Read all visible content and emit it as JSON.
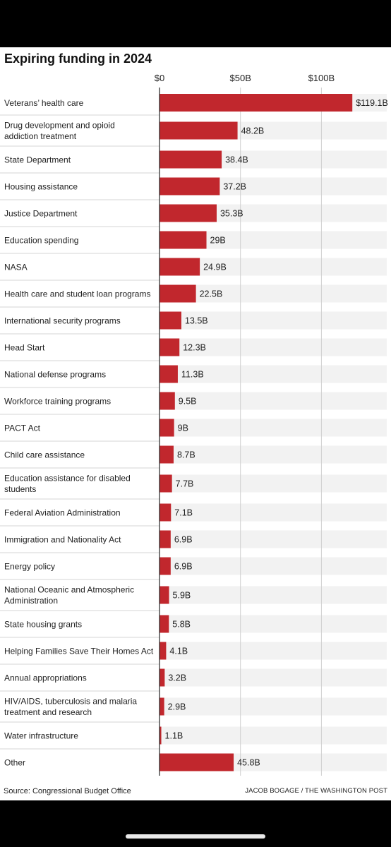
{
  "chart_data": {
    "type": "bar",
    "orientation": "horizontal",
    "title": "Expiring funding in 2024",
    "xlabel": "",
    "ylabel": "",
    "xlim": [
      0,
      130
    ],
    "ticks": [
      0,
      50,
      100
    ],
    "tick_labels": [
      "$0",
      "$50B",
      "$100B"
    ],
    "grid": true,
    "bar_color": "#c1272d",
    "track_color": "#f2f2f2",
    "categories": [
      [
        "Veterans’ health care"
      ],
      [
        "Drug development and opioid",
        "addiction treatment"
      ],
      [
        "State Department"
      ],
      [
        "Housing assistance"
      ],
      [
        "Justice Department"
      ],
      [
        "Education spending"
      ],
      [
        "NASA"
      ],
      [
        "Health care and student loan programs"
      ],
      [
        "International security programs"
      ],
      [
        "Head Start"
      ],
      [
        "National defense programs"
      ],
      [
        "Workforce training programs"
      ],
      [
        "PACT Act"
      ],
      [
        "Child care assistance"
      ],
      [
        "Education assistance for disabled",
        "students"
      ],
      [
        "Federal Aviation Administration"
      ],
      [
        "Immigration and Nationality Act"
      ],
      [
        "Energy policy"
      ],
      [
        "National Oceanic and Atmospheric",
        "Administration"
      ],
      [
        "State housing grants"
      ],
      [
        "Helping Families Save Their Homes Act"
      ],
      [
        "Annual appropriations"
      ],
      [
        "HIV/AIDS, tuberculosis and malaria",
        "treatment and research"
      ],
      [
        "Water infrastructure"
      ],
      [
        "Other"
      ]
    ],
    "values": [
      119.1,
      48.2,
      38.4,
      37.2,
      35.3,
      29,
      24.9,
      22.5,
      13.5,
      12.3,
      11.3,
      9.5,
      9,
      8.7,
      7.7,
      7.1,
      6.9,
      6.9,
      5.9,
      5.8,
      4.1,
      3.2,
      2.9,
      1.1,
      45.8
    ],
    "value_labels": [
      "$119.1B",
      "48.2B",
      "38.4B",
      "37.2B",
      "35.3B",
      "29B",
      "24.9B",
      "22.5B",
      "13.5B",
      "12.3B",
      "11.3B",
      "9.5B",
      "9B",
      "8.7B",
      "7.7B",
      "7.1B",
      "6.9B",
      "6.9B",
      "5.9B",
      "5.8B",
      "4.1B",
      "3.2B",
      "2.9B",
      "1.1B",
      "45.8B"
    ]
  },
  "footer": {
    "source": "Source: Congressional Budget Office",
    "credit": "JACOB BOGAGE / THE WASHINGTON POST"
  }
}
